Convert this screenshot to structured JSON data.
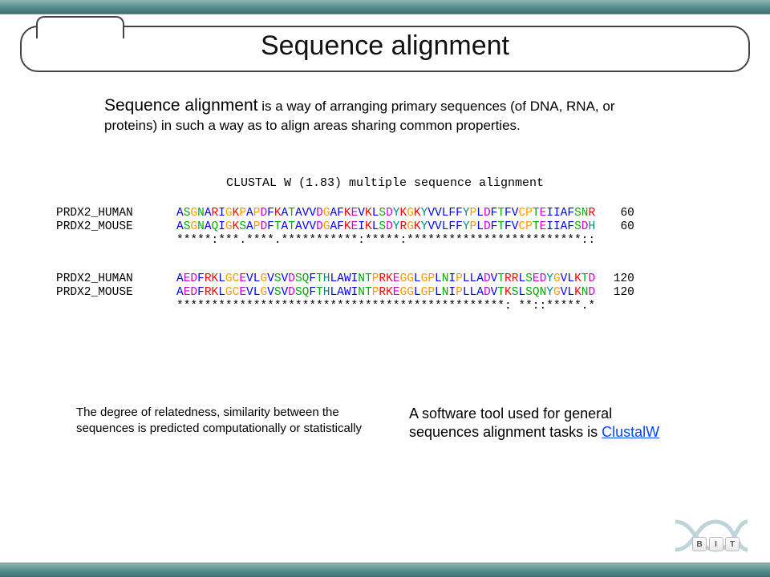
{
  "title": "Sequence alignment",
  "intro_lead": "Sequence alignment",
  "intro_rest": " is a way of arranging primary sequences (of DNA, RNA, or proteins) in such a way as to align  areas sharing common properties.",
  "clustal_header": "CLUSTAL W (1.83) multiple sequence alignment",
  "colors": {
    "A": "#0000ff",
    "I": "#0000ff",
    "L": "#0000ff",
    "M": "#0000ff",
    "F": "#0000ff",
    "W": "#0000ff",
    "V": "#0000ff",
    "K": "#ff0000",
    "R": "#ff0000",
    "E": "#cc00cc",
    "D": "#cc00cc",
    "N": "#00aa00",
    "Q": "#00aa00",
    "S": "#00aa00",
    "T": "#00aa00",
    "C": "#ff9900",
    "G": "#ff9900",
    "P": "#ff9900",
    "H": "#008888",
    "Y": "#008888"
  },
  "blocks": [
    {
      "rows": [
        {
          "label": "PRDX2_HUMAN",
          "seq": "ASGNARIGKPAPDFKATAVVDGAFKEVKLSDYKGKYVVLFFYPLDFTFVCPTEIIAFSNR",
          "pos": "60"
        },
        {
          "label": "PRDX2_MOUSE",
          "seq": "ASGNAQIGKSAPDFTATAVVDGAFKEIKLSDYRGKYVVLFFYPLDFTFVCPTEIIAFSDH",
          "pos": "60"
        }
      ],
      "cons": "*****:***.****.***********:*****:*************************::"
    },
    {
      "rows": [
        {
          "label": "PRDX2_HUMAN",
          "seq": "AEDFRKLGCEVLGVSVDSQFTHLAWINTPRKEGGLGPLNIPLLADVTRRLSEDYGVLKTD",
          "pos": "120"
        },
        {
          "label": "PRDX2_MOUSE",
          "seq": "AEDFRKLGCEVLGVSVDSQFTHLAWINTPRKEGGLGPLNIPLLADVTKSLSQNYGVLKND",
          "pos": "120"
        }
      ],
      "cons": "***********************************************: **::*****.*"
    }
  ],
  "note_left": "The degree of relatedness, similarity between the sequences is predicted computationally or statistically",
  "note_right_pre": "A software tool used for general sequences alignment tasks is ",
  "note_right_link": "ClustalW",
  "logo_keys": [
    "B",
    "I",
    "T"
  ]
}
